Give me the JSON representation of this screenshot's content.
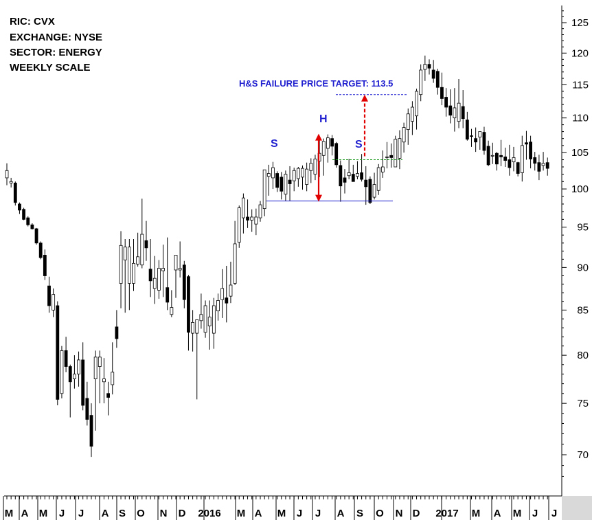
{
  "header": {
    "lines": [
      "RIC: CVX",
      "EXCHANGE: NYSE",
      "SECTOR: ENERGY",
      "WEEKLY SCALE"
    ]
  },
  "colors": {
    "up_fill": "#ffffff",
    "down_fill": "#000000",
    "candle_line": "#000000",
    "annotation_blue": "#1f1fd0",
    "neckline_blue": "#1f1fd0",
    "arrow_red": "#e00000",
    "dashed_green": "#1a9a1a",
    "axis_gray": "#d9d9d9"
  },
  "annotations": {
    "target_label": "H&S FAILURE PRICE TARGET: 113.5",
    "head_label": "H",
    "left_shoulder_label": "S",
    "right_shoulder_label": "S"
  },
  "chart_data": {
    "type": "candlestick",
    "scale": "log",
    "ylim": [
      67,
      127
    ],
    "y_ticks": [
      70,
      75,
      80,
      85,
      90,
      95,
      100,
      105,
      110,
      115,
      120,
      125
    ],
    "x_labels": [
      "M",
      "A",
      "M",
      "J",
      "J",
      "A",
      "S",
      "O",
      "N",
      "D",
      "2016",
      "M",
      "A",
      "M",
      "J",
      "J",
      "A",
      "S",
      "O",
      "N",
      "D",
      "2017",
      "M",
      "A",
      "M",
      "J",
      "J"
    ],
    "levels": {
      "neckline": 98.4,
      "breakout": 104.0,
      "target": 113.5,
      "head_high": 107.6
    },
    "candles": [
      [
        103.5,
        100.5,
        101.5,
        102.5
      ],
      [
        101.5,
        100.2,
        100.8,
        101.0
      ],
      [
        101.0,
        97.8,
        100.8,
        98.2
      ],
      [
        98.2,
        96.7,
        98.0,
        97.2
      ],
      [
        97.5,
        95.9,
        97.3,
        96.0
      ],
      [
        96.4,
        95.1,
        96.2,
        95.3
      ],
      [
        95.5,
        94.7,
        95.3,
        94.8
      ],
      [
        94.9,
        92.8,
        94.8,
        93.0
      ],
      [
        93.2,
        91.0,
        93.0,
        91.2
      ],
      [
        92.2,
        88.5,
        91.5,
        89.0
      ],
      [
        88.9,
        84.7,
        87.8,
        85.5
      ],
      [
        87.5,
        84.2,
        85.0,
        86.8
      ],
      [
        86.0,
        74.8,
        85.5,
        75.4
      ],
      [
        81.0,
        75.5,
        76.0,
        80.5
      ],
      [
        82.0,
        78.2,
        80.5,
        78.8
      ],
      [
        79.0,
        73.6,
        78.8,
        77.2
      ],
      [
        80.0,
        76.5,
        77.5,
        78.0
      ],
      [
        80.4,
        76.7,
        78.0,
        79.5
      ],
      [
        81.4,
        74.3,
        79.5,
        74.8
      ],
      [
        77.2,
        72.8,
        75.5,
        73.4
      ],
      [
        75.0,
        69.8,
        73.8,
        70.8
      ],
      [
        80.5,
        72.3,
        77.5,
        79.8
      ],
      [
        80.5,
        75.0,
        78.8,
        79.8
      ],
      [
        79.7,
        75.0,
        77.2,
        77.5
      ],
      [
        77.2,
        73.8,
        76.0,
        75.6
      ],
      [
        81.4,
        75.9,
        76.9,
        78.2
      ],
      [
        85.0,
        80.8,
        83.1,
        81.8
      ],
      [
        94.5,
        85.2,
        88.1,
        92.7
      ],
      [
        93.5,
        84.7,
        90.9,
        92.5
      ],
      [
        93.5,
        85.0,
        88.1,
        92.5
      ],
      [
        93.5,
        87.2,
        88.1,
        90.5
      ],
      [
        94.3,
        90.1,
        90.4,
        91.3
      ],
      [
        98.7,
        89.9,
        90.3,
        94.1
      ],
      [
        95.8,
        90.8,
        93.3,
        92.4
      ],
      [
        93.5,
        86.5,
        89.8,
        88.4
      ],
      [
        91.4,
        85.7,
        87.5,
        88.7
      ],
      [
        90.9,
        86.3,
        87.3,
        89.9
      ],
      [
        92.8,
        86.5,
        89.6,
        89.9
      ],
      [
        93.7,
        85.0,
        87.6,
        85.9
      ],
      [
        87.3,
        84.2,
        84.5,
        85.3
      ],
      [
        91.3,
        86.4,
        89.7,
        91.5
      ],
      [
        93.2,
        88.8,
        89.7,
        89.9
      ],
      [
        90.8,
        85.2,
        90.3,
        86.2
      ],
      [
        89.1,
        80.5,
        88.9,
        82.5
      ],
      [
        85.0,
        80.4,
        82.4,
        83.6
      ],
      [
        83.8,
        75.4,
        82.4,
        83.9
      ],
      [
        86.9,
        82.9,
        83.8,
        84.5
      ],
      [
        86.1,
        81.9,
        82.5,
        85.5
      ],
      [
        86.1,
        80.6,
        83.2,
        84.2
      ],
      [
        86.4,
        80.7,
        82.4,
        85.5
      ],
      [
        86.9,
        83.8,
        84.9,
        86.1
      ],
      [
        89.8,
        84.1,
        86.2,
        87.5
      ],
      [
        90.2,
        83.6,
        86.4,
        85.8
      ],
      [
        90.7,
        85.8,
        86.6,
        87.9
      ],
      [
        95.8,
        87.9,
        88.1,
        92.9
      ],
      [
        97.8,
        92.4,
        93.1,
        97.5
      ],
      [
        99.4,
        94.2,
        96.2,
        98.8
      ],
      [
        98.6,
        94.9,
        96.3,
        95.9
      ],
      [
        97.3,
        94.4,
        95.9,
        96.3
      ],
      [
        97.4,
        94.0,
        95.4,
        96.3
      ],
      [
        98.4,
        95.7,
        96.2,
        97.9
      ],
      [
        102.6,
        96.4,
        97.4,
        102.6
      ],
      [
        103.3,
        99.1,
        101.7,
        102.1
      ],
      [
        103.7,
        100.0,
        101.5,
        102.9
      ],
      [
        102.4,
        99.6,
        102.1,
        100.2
      ],
      [
        102.3,
        98.6,
        101.6,
        99.7
      ],
      [
        102.5,
        98.4,
        99.3,
        102.0
      ],
      [
        103.1,
        98.4,
        101.2,
        100.7
      ],
      [
        102.9,
        99.7,
        101.1,
        102.5
      ],
      [
        103.0,
        100.3,
        101.4,
        102.8
      ],
      [
        103.2,
        99.9,
        101.6,
        102.8
      ],
      [
        103.6,
        99.7,
        100.6,
        102.7
      ],
      [
        104.2,
        100.8,
        102.5,
        103.5
      ],
      [
        104.7,
        101.2,
        102.0,
        104.1
      ],
      [
        106.8,
        101.6,
        103.8,
        104.9
      ],
      [
        107.0,
        101.8,
        104.6,
        106.6
      ],
      [
        107.6,
        103.6,
        105.6,
        107.1
      ],
      [
        107.5,
        104.6,
        107.0,
        105.9
      ],
      [
        106.5,
        102.9,
        106.3,
        103.3
      ],
      [
        103.9,
        98.3,
        103.2,
        100.4
      ],
      [
        102.7,
        99.4,
        101.5,
        100.9
      ],
      [
        104.1,
        101.3,
        101.8,
        102.2
      ],
      [
        103.3,
        101.1,
        102.0,
        101.0
      ],
      [
        103.8,
        101.3,
        101.7,
        102.1
      ],
      [
        104.8,
        101.0,
        102.2,
        101.3
      ],
      [
        103.1,
        97.9,
        101.2,
        100.3
      ],
      [
        101.7,
        98.0,
        101.3,
        98.2
      ],
      [
        102.2,
        98.6,
        98.9,
        100.6
      ],
      [
        103.4,
        99.2,
        99.8,
        102.9
      ],
      [
        105.3,
        101.5,
        102.3,
        103.0
      ],
      [
        106.5,
        102.8,
        104.4,
        104.4
      ],
      [
        106.3,
        102.9,
        104.6,
        104.3
      ],
      [
        107.4,
        103.0,
        103.0,
        106.9
      ],
      [
        108.2,
        102.7,
        104.2,
        107.0
      ],
      [
        109.3,
        105.0,
        106.5,
        108.6
      ],
      [
        111.4,
        106.1,
        108.3,
        110.6
      ],
      [
        112.5,
        107.5,
        109.5,
        111.6
      ],
      [
        114.4,
        108.3,
        110.3,
        114.0
      ],
      [
        118.2,
        112.5,
        113.5,
        117.3
      ],
      [
        119.6,
        115.6,
        117.4,
        118.2
      ],
      [
        119.0,
        116.6,
        118.2,
        117.6
      ],
      [
        118.9,
        115.3,
        117.3,
        116.0
      ],
      [
        117.5,
        113.5,
        117.1,
        114.6
      ],
      [
        116.9,
        111.9,
        114.6,
        112.9
      ],
      [
        114.5,
        110.2,
        113.1,
        111.6
      ],
      [
        114.3,
        109.2,
        111.8,
        110.4
      ],
      [
        114.5,
        108.0,
        110.0,
        111.5
      ],
      [
        115.9,
        108.5,
        109.5,
        112.2
      ],
      [
        114.2,
        108.5,
        111.7,
        109.9
      ],
      [
        110.9,
        106.7,
        109.7,
        106.9
      ],
      [
        108.4,
        105.8,
        107.4,
        107.3
      ],
      [
        108.6,
        105.1,
        107.0,
        106.5
      ],
      [
        108.0,
        105.4,
        107.2,
        108.0
      ],
      [
        108.7,
        104.7,
        107.9,
        105.3
      ],
      [
        106.7,
        103.1,
        105.9,
        103.3
      ],
      [
        106.4,
        103.4,
        104.5,
        104.6
      ],
      [
        105.1,
        102.5,
        104.9,
        103.4
      ],
      [
        106.8,
        103.1,
        104.6,
        104.4
      ],
      [
        105.7,
        103.0,
        104.4,
        103.9
      ],
      [
        106.1,
        101.8,
        104.0,
        102.9
      ],
      [
        105.8,
        102.4,
        103.7,
        104.3
      ],
      [
        103.7,
        101.7,
        103.6,
        102.1
      ],
      [
        107.4,
        101.0,
        102.2,
        106.0
      ],
      [
        108.1,
        104.0,
        106.4,
        106.2
      ],
      [
        107.4,
        102.8,
        106.5,
        104.1
      ],
      [
        105.1,
        102.5,
        104.3,
        103.5
      ],
      [
        104.7,
        101.2,
        103.6,
        102.4
      ],
      [
        105.1,
        102.5,
        103.2,
        103.5
      ],
      [
        104.3,
        101.8,
        103.6,
        102.8
      ]
    ]
  }
}
